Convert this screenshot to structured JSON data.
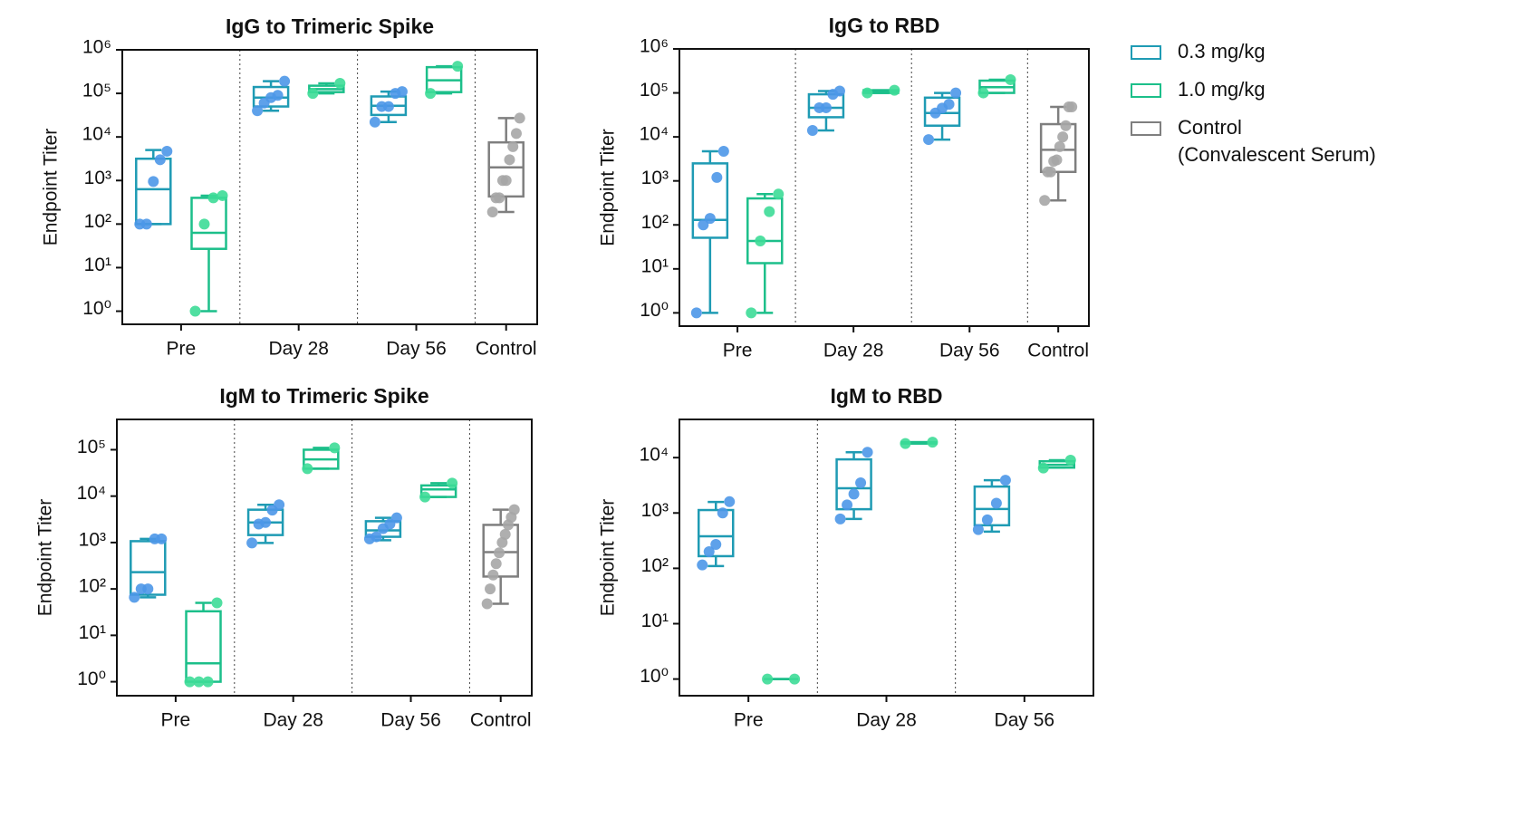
{
  "legend": [
    {
      "name": "0.3 mg/kg",
      "color": "#1f9bb4",
      "point_color": "#4c97e8"
    },
    {
      "name": "1.0 mg/kg",
      "color": "#1cbf8a",
      "point_color": "#3ddc97"
    },
    {
      "name": "Control\n(Convalescent Serum)",
      "color": "#7f7f7f",
      "point_color": "#a6a6a6"
    }
  ],
  "chart_data": [
    {
      "type": "box",
      "title": "IgG to Trimeric Spike",
      "y_label": "Endpoint Titer",
      "log_scale": true,
      "categories": [
        "Pre",
        "Day 28",
        "Day 56",
        "Control"
      ],
      "ylim": [
        0.5,
        1000000
      ],
      "yticks": [
        {
          "value": 1,
          "label": "10⁰"
        },
        {
          "value": 10,
          "label": "10¹"
        },
        {
          "value": 100,
          "label": "10²"
        },
        {
          "value": 1000,
          "label": "10³"
        },
        {
          "value": 10000,
          "label": "10⁴"
        },
        {
          "value": 100000,
          "label": "10⁵"
        },
        {
          "value": 1000000,
          "label": "10⁶"
        }
      ],
      "series": [
        {
          "values": [
            {
              "min": 100,
              "q1": 100,
              "median": 630,
              "q3": 3162,
              "max": 5000,
              "points": [
                100,
                100,
                950,
                3000,
                4700
              ]
            },
            {
              "min": 40000,
              "q1": 50000,
              "median": 80000,
              "q3": 140000,
              "max": 190000,
              "points": [
                40000,
                60000,
                80000,
                90000,
                190000
              ]
            },
            {
              "min": 22000,
              "q1": 32000,
              "median": 52000,
              "q3": 85000,
              "max": 110000,
              "points": [
                22000,
                50000,
                50000,
                100000,
                110000
              ]
            },
            null
          ]
        },
        {
          "values": [
            {
              "min": 1,
              "q1": 27,
              "median": 63,
              "q3": 400,
              "max": 450,
              "points": [
                1,
                100,
                400,
                450
              ]
            },
            {
              "min": 100000,
              "q1": 107000,
              "median": 125000,
              "q3": 150000,
              "max": 170000,
              "points": [
                100000,
                170000
              ]
            },
            {
              "min": 100000,
              "q1": 107000,
              "median": 200000,
              "q3": 400000,
              "max": 420000,
              "points": [
                100000,
                420000
              ]
            },
            null
          ]
        },
        {
          "values": [
            null,
            null,
            null,
            {
              "min": 190,
              "q1": 430,
              "median": 2000,
              "q3": 7500,
              "max": 27000,
              "points": [
                190,
                400,
                400,
                1000,
                1000,
                3000,
                6000,
                12000,
                27000
              ]
            }
          ]
        }
      ]
    },
    {
      "type": "box",
      "title": "IgG to RBD",
      "y_label": "Endpoint Titer",
      "log_scale": true,
      "categories": [
        "Pre",
        "Day 28",
        "Day 56",
        "Control"
      ],
      "ylim": [
        0.5,
        1000000
      ],
      "yticks": [
        {
          "value": 1,
          "label": "10⁰"
        },
        {
          "value": 10,
          "label": "10¹"
        },
        {
          "value": 100,
          "label": "10²"
        },
        {
          "value": 1000,
          "label": "10³"
        },
        {
          "value": 10000,
          "label": "10⁴"
        },
        {
          "value": 100000,
          "label": "10⁵"
        },
        {
          "value": 1000000,
          "label": "10⁶"
        }
      ],
      "series": [
        {
          "values": [
            {
              "min": 1,
              "q1": 51,
              "median": 130,
              "q3": 2500,
              "max": 4700,
              "points": [
                1,
                100,
                140,
                1200,
                4700
              ]
            },
            {
              "min": 14000,
              "q1": 28000,
              "median": 46000,
              "q3": 93000,
              "max": 110000,
              "points": [
                14000,
                46000,
                46000,
                93000,
                110000
              ]
            },
            {
              "min": 8700,
              "q1": 18000,
              "median": 35000,
              "q3": 78000,
              "max": 100000,
              "points": [
                8700,
                35000,
                45000,
                55000,
                100000
              ]
            },
            null
          ]
        },
        {
          "values": [
            {
              "min": 1,
              "q1": 13.5,
              "median": 43,
              "q3": 400,
              "max": 500,
              "points": [
                1,
                43,
                200,
                500
              ]
            },
            {
              "min": 100000,
              "q1": 100000,
              "median": 108000,
              "q3": 115000,
              "max": 115000,
              "points": [
                100000,
                115000
              ]
            },
            {
              "min": 100000,
              "q1": 100000,
              "median": 135000,
              "q3": 190000,
              "max": 200000,
              "points": [
                100000,
                200000
              ]
            },
            null
          ]
        },
        {
          "values": [
            null,
            null,
            null,
            {
              "min": 360,
              "q1": 1600,
              "median": 5100,
              "q3": 19500,
              "max": 48000,
              "points": [
                360,
                1600,
                1600,
                2800,
                3000,
                6000,
                10000,
                18000,
                48000,
                48000
              ]
            }
          ]
        }
      ]
    },
    {
      "type": "box",
      "title": "IgM to Trimeric Spike",
      "y_label": "Endpoint Titer",
      "log_scale": true,
      "categories": [
        "Pre",
        "Day 28",
        "Day 56",
        "Control"
      ],
      "ylim": [
        0.5,
        450000
      ],
      "yticks": [
        {
          "value": 1,
          "label": "10⁰"
        },
        {
          "value": 10,
          "label": "10¹"
        },
        {
          "value": 100,
          "label": "10²"
        },
        {
          "value": 1000,
          "label": "10³"
        },
        {
          "value": 10000,
          "label": "10⁴"
        },
        {
          "value": 100000,
          "label": "10⁵"
        }
      ],
      "series": [
        {
          "values": [
            {
              "min": 66,
              "q1": 75,
              "median": 230,
              "q3": 1070,
              "max": 1200,
              "points": [
                66,
                100,
                100,
                1200,
                1200
              ]
            },
            {
              "min": 980,
              "q1": 1450,
              "median": 2700,
              "q3": 5100,
              "max": 6500,
              "points": [
                980,
                2500,
                2700,
                5000,
                6500
              ]
            },
            {
              "min": 1120,
              "q1": 1330,
              "median": 1830,
              "q3": 2880,
              "max": 3400,
              "points": [
                1200,
                1330,
                2000,
                2500,
                3400
              ]
            },
            null
          ]
        },
        {
          "values": [
            {
              "min": 1,
              "q1": 1,
              "median": 2.5,
              "q3": 33,
              "max": 50,
              "points": [
                1,
                1,
                1,
                50
              ]
            },
            {
              "min": 39000,
              "q1": 39000,
              "median": 62000,
              "q3": 100000,
              "max": 110000,
              "points": [
                39000,
                110000
              ]
            },
            {
              "min": 9600,
              "q1": 9600,
              "median": 14000,
              "q3": 17000,
              "max": 19000,
              "points": [
                9600,
                19000
              ]
            },
            null
          ]
        },
        {
          "values": [
            null,
            null,
            null,
            {
              "min": 48,
              "q1": 185,
              "median": 620,
              "q3": 2400,
              "max": 5100,
              "points": [
                48,
                100,
                200,
                350,
                600,
                1000,
                1500,
                2400,
                3500,
                5100
              ]
            }
          ]
        }
      ]
    },
    {
      "type": "box",
      "title": "IgM to RBD",
      "y_label": "Endpoint Titer",
      "log_scale": true,
      "categories": [
        "Pre",
        "Day 28",
        "Day 56"
      ],
      "ylim": [
        0.5,
        49000
      ],
      "yticks": [
        {
          "value": 1,
          "label": "10⁰"
        },
        {
          "value": 10,
          "label": "10¹"
        },
        {
          "value": 100,
          "label": "10²"
        },
        {
          "value": 1000,
          "label": "10³"
        },
        {
          "value": 10000,
          "label": "10⁴"
        }
      ],
      "series": [
        {
          "values": [
            {
              "min": 110,
              "q1": 166,
              "median": 380,
              "q3": 1130,
              "max": 1580,
              "points": [
                115,
                200,
                270,
                1000,
                1600
              ]
            },
            {
              "min": 780,
              "q1": 1170,
              "median": 2800,
              "q3": 9300,
              "max": 12500,
              "points": [
                780,
                1400,
                2200,
                3500,
                12500
              ]
            },
            {
              "min": 460,
              "q1": 600,
              "median": 1180,
              "q3": 3000,
              "max": 3900,
              "points": [
                500,
                750,
                1500,
                3900
              ]
            }
          ]
        },
        {
          "values": [
            {
              "min": 1,
              "q1": 1,
              "median": 1,
              "q3": 1,
              "max": 1,
              "points": [
                1,
                1
              ]
            },
            {
              "min": 18000,
              "q1": 18000,
              "median": 18500,
              "q3": 19000,
              "max": 19000,
              "points": [
                18000,
                19000
              ]
            },
            {
              "min": 6600,
              "q1": 6600,
              "median": 7400,
              "q3": 8600,
              "max": 9000,
              "points": [
                6500,
                9000
              ]
            }
          ]
        },
        {
          "values": [
            null,
            null,
            null
          ]
        }
      ]
    }
  ]
}
